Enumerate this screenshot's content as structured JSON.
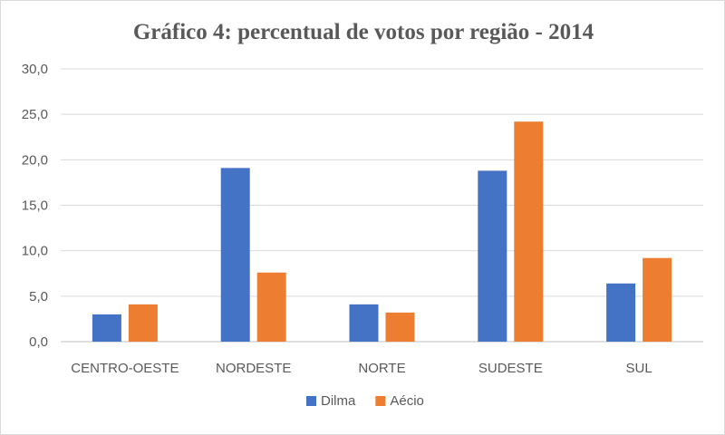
{
  "chart_data": {
    "type": "bar",
    "title": "Gráfico 4: percentual de votos por região - 2014",
    "xlabel": "",
    "ylabel": "",
    "categories": [
      "CENTRO-OESTE",
      "NORDESTE",
      "NORTE",
      "SUDESTE",
      "SUL"
    ],
    "series": [
      {
        "name": "Dilma",
        "color": "#4472C4",
        "values": [
          3.0,
          19.1,
          4.1,
          18.8,
          6.4
        ]
      },
      {
        "name": "Aécio",
        "color": "#ED7D31",
        "values": [
          4.1,
          7.6,
          3.2,
          24.2,
          9.2
        ]
      }
    ],
    "ylim": [
      0,
      30
    ],
    "yticks": [
      "0,0",
      "5,0",
      "10,0",
      "15,0",
      "20,0",
      "25,0",
      "30,0"
    ],
    "grid": true,
    "legend_position": "bottom"
  }
}
